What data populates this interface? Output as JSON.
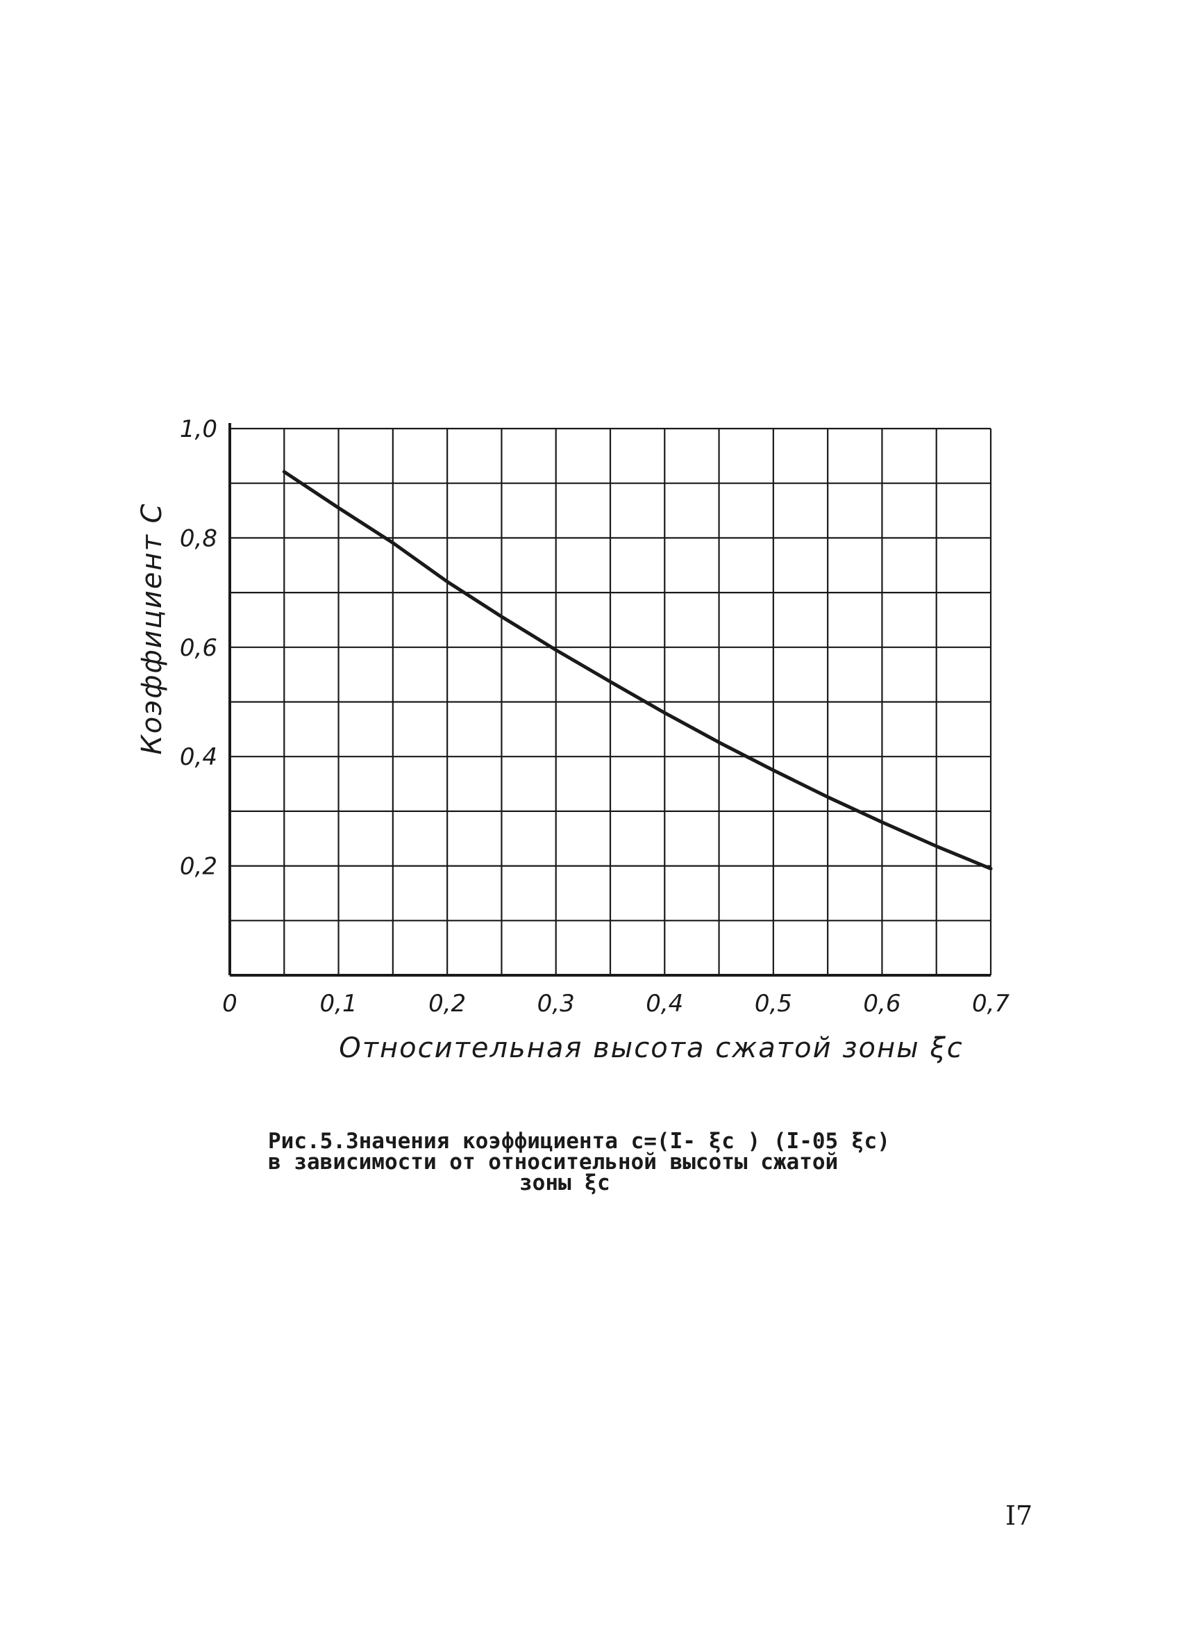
{
  "chart_data": {
    "type": "line",
    "xlabel": "Относительная высота сжатой зоны ξc",
    "ylabel": "Коэффициент С",
    "xlim": [
      0,
      0.7
    ],
    "ylim": [
      0,
      1.0
    ],
    "x_ticks": [
      "0",
      "0,1",
      "0,2",
      "0,3",
      "0,4",
      "0,5",
      "0,6",
      "0,7"
    ],
    "x_tick_values": [
      0,
      0.1,
      0.2,
      0.3,
      0.4,
      0.5,
      0.6,
      0.7
    ],
    "y_ticks": [
      "0,2",
      "0,4",
      "0,6",
      "0,8",
      "1,0"
    ],
    "y_tick_values": [
      0.2,
      0.4,
      0.6,
      0.8,
      1.0
    ],
    "grid": true,
    "series": [
      {
        "x": [
          0.05,
          0.1,
          0.15,
          0.2,
          0.25,
          0.3,
          0.35,
          0.4,
          0.45,
          0.5,
          0.55,
          0.6,
          0.65,
          0.7
        ],
        "values": [
          0.921,
          0.855,
          0.791,
          0.72,
          0.656,
          0.595,
          0.537,
          0.48,
          0.426,
          0.375,
          0.326,
          0.28,
          0.236,
          0.195
        ]
      }
    ]
  },
  "caption": {
    "line1": "Рис.5.Значения коэффициента c=(I- ξc ) (I-05 ξc)",
    "line2": "в зависимости от относительной высоты сжатой",
    "line3": "зоны ξc"
  },
  "page_number": "I7",
  "colors": {
    "ink": "#1a1a1a",
    "paper": "#ffffff"
  }
}
